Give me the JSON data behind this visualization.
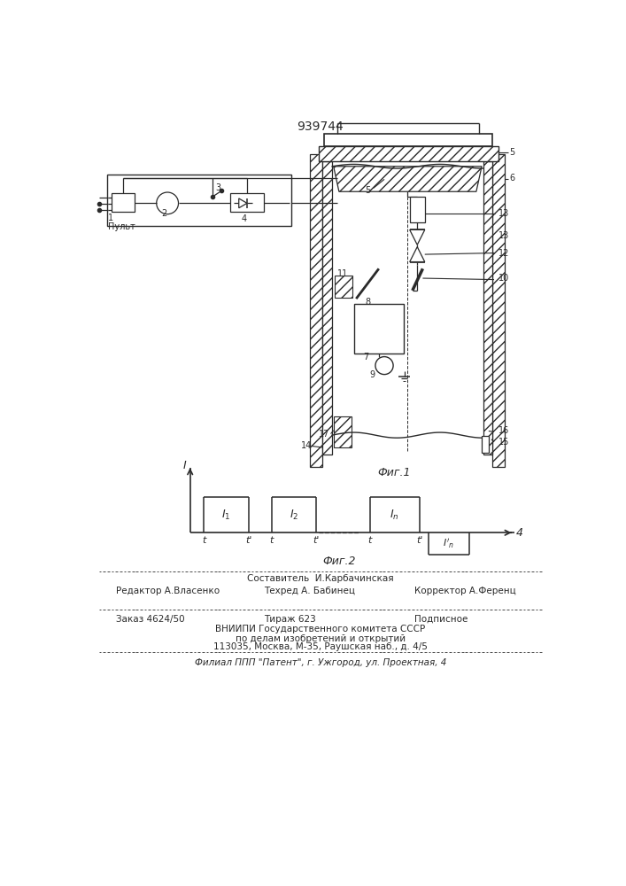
{
  "patent_number": "939744",
  "fig1_caption": "Фиг.1",
  "fig2_caption": "Фиг.2",
  "label_pulte": "Пульт",
  "footer_line1_center": "Составитель  И.Карбачинская",
  "footer_line2_left": "Редактор А.Власенко",
  "footer_line2_center": "Техред А. Бабинец",
  "footer_line2_right": "Корректор А.Ференц",
  "footer_line3_left": "Заказ 4624/50",
  "footer_line3_center": "Тираж 623",
  "footer_line3_right": "Подписное",
  "footer_line4": "ВНИИПИ Государственного комитета СССР",
  "footer_line5": "по делам изобретений и открытий",
  "footer_line6": "113035, Москва, М-35, Раушская наб., д. 4/5",
  "footer_line7": "Филиал ППП \"Патент\", г. Ужгород, ул. Проектная, 4",
  "bg_color": "#ffffff",
  "line_color": "#2a2a2a"
}
